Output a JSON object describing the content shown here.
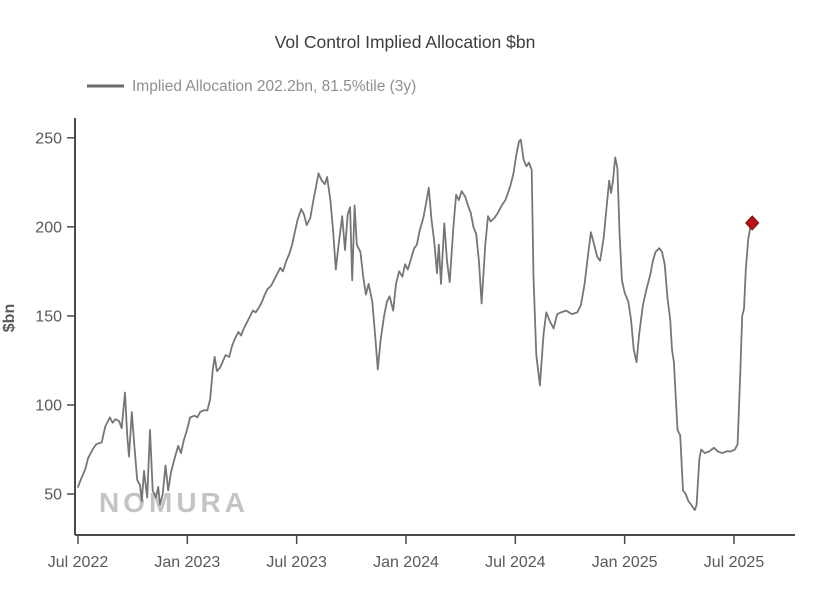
{
  "title": "Vol Control Implied Allocation $bn",
  "legend": {
    "label": "Implied Allocation 202.2bn, 81.5%tile (3y)"
  },
  "watermark": "NOMURA",
  "colors": {
    "line": "#767676",
    "axis": "#4a4a4a",
    "tick_label": "#595959",
    "title": "#3d3d3d",
    "legend_text": "#8f8f8f",
    "legend_swatch": "#6b6b6b",
    "ylabel": "#595959",
    "watermark": "#c4c4c4",
    "marker_fill": "#bb1111",
    "marker_edge": "#7a0d0d"
  },
  "chart_data": {
    "type": "line",
    "title": "Vol Control Implied Allocation $bn",
    "xlabel": "",
    "ylabel": "$bn",
    "ylim": [
      27,
      260
    ],
    "yticks": [
      50,
      100,
      150,
      200,
      250
    ],
    "xticks": [
      {
        "m": 0,
        "label": "Jul 2022"
      },
      {
        "m": 6,
        "label": "Jan 2023"
      },
      {
        "m": 12,
        "label": "Jul 2023"
      },
      {
        "m": 18,
        "label": "Jan 2024"
      },
      {
        "m": 24,
        "label": "Jul 2024"
      },
      {
        "m": 30,
        "label": "Jan 2025"
      },
      {
        "m": 36,
        "label": "Jul 2025"
      }
    ],
    "x_unit": "months since Jul 2022",
    "grid": false,
    "legend_position": "top-left",
    "series": [
      {
        "name": "Implied Allocation 202.2bn, 81.5%tile (3y)",
        "points": [
          [
            0.0,
            54
          ],
          [
            0.15,
            58
          ],
          [
            0.4,
            64
          ],
          [
            0.55,
            70
          ],
          [
            0.8,
            75
          ],
          [
            1.0,
            78
          ],
          [
            1.3,
            79
          ],
          [
            1.5,
            88
          ],
          [
            1.75,
            93
          ],
          [
            1.9,
            90
          ],
          [
            2.05,
            92
          ],
          [
            2.25,
            91
          ],
          [
            2.4,
            87
          ],
          [
            2.58,
            107
          ],
          [
            2.7,
            83
          ],
          [
            2.8,
            71
          ],
          [
            2.95,
            96
          ],
          [
            3.1,
            76
          ],
          [
            3.25,
            58
          ],
          [
            3.4,
            55
          ],
          [
            3.5,
            46
          ],
          [
            3.62,
            63
          ],
          [
            3.8,
            48
          ],
          [
            3.95,
            86
          ],
          [
            4.1,
            52
          ],
          [
            4.28,
            48
          ],
          [
            4.4,
            54
          ],
          [
            4.5,
            44
          ],
          [
            4.65,
            50
          ],
          [
            4.8,
            66
          ],
          [
            4.95,
            52
          ],
          [
            5.1,
            62
          ],
          [
            5.3,
            70
          ],
          [
            5.5,
            77
          ],
          [
            5.65,
            73
          ],
          [
            5.8,
            80
          ],
          [
            5.98,
            86
          ],
          [
            6.15,
            93
          ],
          [
            6.4,
            94
          ],
          [
            6.55,
            93
          ],
          [
            6.7,
            96
          ],
          [
            6.9,
            97
          ],
          [
            7.1,
            97
          ],
          [
            7.25,
            103
          ],
          [
            7.4,
            120
          ],
          [
            7.5,
            127
          ],
          [
            7.62,
            119
          ],
          [
            7.8,
            121
          ],
          [
            7.97,
            125
          ],
          [
            8.1,
            128
          ],
          [
            8.3,
            127
          ],
          [
            8.45,
            133
          ],
          [
            8.6,
            137
          ],
          [
            8.8,
            141
          ],
          [
            8.95,
            139
          ],
          [
            9.1,
            143
          ],
          [
            9.3,
            147
          ],
          [
            9.45,
            150
          ],
          [
            9.6,
            153
          ],
          [
            9.75,
            152
          ],
          [
            9.95,
            155
          ],
          [
            10.1,
            158
          ],
          [
            10.25,
            162
          ],
          [
            10.4,
            165
          ],
          [
            10.6,
            167
          ],
          [
            10.75,
            170
          ],
          [
            10.9,
            173
          ],
          [
            11.1,
            177
          ],
          [
            11.25,
            175
          ],
          [
            11.4,
            180
          ],
          [
            11.6,
            185
          ],
          [
            11.75,
            190
          ],
          [
            11.9,
            197
          ],
          [
            12.05,
            204
          ],
          [
            12.25,
            210
          ],
          [
            12.4,
            207
          ],
          [
            12.55,
            201
          ],
          [
            12.75,
            205
          ],
          [
            12.9,
            214
          ],
          [
            13.05,
            222
          ],
          [
            13.2,
            230
          ],
          [
            13.38,
            226
          ],
          [
            13.55,
            224
          ],
          [
            13.67,
            228
          ],
          [
            13.85,
            215
          ],
          [
            14.0,
            198
          ],
          [
            14.15,
            176
          ],
          [
            14.3,
            190
          ],
          [
            14.5,
            206
          ],
          [
            14.65,
            187
          ],
          [
            14.8,
            207
          ],
          [
            14.93,
            211
          ],
          [
            15.05,
            170
          ],
          [
            15.18,
            212
          ],
          [
            15.3,
            190
          ],
          [
            15.5,
            186
          ],
          [
            15.65,
            172
          ],
          [
            15.8,
            162
          ],
          [
            15.95,
            168
          ],
          [
            16.15,
            158
          ],
          [
            16.3,
            140
          ],
          [
            16.45,
            120
          ],
          [
            16.6,
            136
          ],
          [
            16.8,
            150
          ],
          [
            16.95,
            158
          ],
          [
            17.1,
            161
          ],
          [
            17.3,
            153
          ],
          [
            17.45,
            168
          ],
          [
            17.62,
            175
          ],
          [
            17.8,
            172
          ],
          [
            17.95,
            179
          ],
          [
            18.1,
            176
          ],
          [
            18.3,
            183
          ],
          [
            18.45,
            188
          ],
          [
            18.6,
            190
          ],
          [
            18.75,
            198
          ],
          [
            18.95,
            205
          ],
          [
            19.1,
            213
          ],
          [
            19.25,
            222
          ],
          [
            19.4,
            204
          ],
          [
            19.55,
            192
          ],
          [
            19.7,
            174
          ],
          [
            19.8,
            190
          ],
          [
            19.92,
            168
          ],
          [
            20.1,
            202
          ],
          [
            20.25,
            181
          ],
          [
            20.4,
            169
          ],
          [
            20.6,
            200
          ],
          [
            20.75,
            218
          ],
          [
            20.9,
            215
          ],
          [
            21.05,
            220
          ],
          [
            21.25,
            217
          ],
          [
            21.4,
            212
          ],
          [
            21.55,
            208
          ],
          [
            21.7,
            200
          ],
          [
            21.85,
            196
          ],
          [
            22.0,
            181
          ],
          [
            22.15,
            157
          ],
          [
            22.35,
            190
          ],
          [
            22.5,
            206
          ],
          [
            22.65,
            203
          ],
          [
            22.85,
            205
          ],
          [
            23.05,
            208
          ],
          [
            23.25,
            212
          ],
          [
            23.45,
            215
          ],
          [
            23.6,
            219
          ],
          [
            23.75,
            224
          ],
          [
            23.9,
            230
          ],
          [
            24.05,
            240
          ],
          [
            24.2,
            248
          ],
          [
            24.3,
            249
          ],
          [
            24.45,
            238
          ],
          [
            24.6,
            234
          ],
          [
            24.75,
            236
          ],
          [
            24.9,
            232
          ],
          [
            25.0,
            172
          ],
          [
            25.15,
            128
          ],
          [
            25.35,
            111
          ],
          [
            25.55,
            140
          ],
          [
            25.7,
            152
          ],
          [
            25.9,
            147
          ],
          [
            26.1,
            143
          ],
          [
            26.3,
            151
          ],
          [
            26.5,
            152
          ],
          [
            26.8,
            153
          ],
          [
            27.1,
            151
          ],
          [
            27.4,
            152
          ],
          [
            27.6,
            156
          ],
          [
            27.8,
            168
          ],
          [
            28.0,
            185
          ],
          [
            28.15,
            197
          ],
          [
            28.3,
            191
          ],
          [
            28.5,
            183
          ],
          [
            28.65,
            181
          ],
          [
            28.85,
            194
          ],
          [
            29.0,
            210
          ],
          [
            29.15,
            226
          ],
          [
            29.25,
            219
          ],
          [
            29.35,
            225
          ],
          [
            29.48,
            239
          ],
          [
            29.6,
            233
          ],
          [
            29.72,
            196
          ],
          [
            29.85,
            170
          ],
          [
            30.0,
            163
          ],
          [
            30.2,
            158
          ],
          [
            30.35,
            148
          ],
          [
            30.5,
            131
          ],
          [
            30.65,
            124
          ],
          [
            30.8,
            140
          ],
          [
            31.0,
            156
          ],
          [
            31.2,
            165
          ],
          [
            31.4,
            173
          ],
          [
            31.55,
            181
          ],
          [
            31.7,
            186
          ],
          [
            31.9,
            188
          ],
          [
            32.05,
            186
          ],
          [
            32.2,
            179
          ],
          [
            32.35,
            160
          ],
          [
            32.5,
            148
          ],
          [
            32.6,
            131
          ],
          [
            32.7,
            124
          ],
          [
            32.8,
            105
          ],
          [
            32.9,
            86
          ],
          [
            33.05,
            83
          ],
          [
            33.2,
            52
          ],
          [
            33.35,
            50
          ],
          [
            33.5,
            46
          ],
          [
            33.65,
            44
          ],
          [
            33.85,
            41
          ],
          [
            33.95,
            44
          ],
          [
            34.1,
            70
          ],
          [
            34.2,
            75
          ],
          [
            34.4,
            73
          ],
          [
            34.65,
            74
          ],
          [
            34.9,
            76
          ],
          [
            35.1,
            74
          ],
          [
            35.35,
            73
          ],
          [
            35.6,
            74
          ],
          [
            35.85,
            74
          ],
          [
            36.05,
            75
          ],
          [
            36.2,
            78
          ],
          [
            36.35,
            120
          ],
          [
            36.45,
            150
          ],
          [
            36.55,
            154
          ],
          [
            36.65,
            176
          ],
          [
            36.78,
            193
          ],
          [
            36.9,
            200
          ],
          [
            37.0,
            202.2
          ]
        ]
      }
    ],
    "latest_point": {
      "x_month": 37.0,
      "value": 202.2,
      "marker": "red-diamond"
    }
  }
}
